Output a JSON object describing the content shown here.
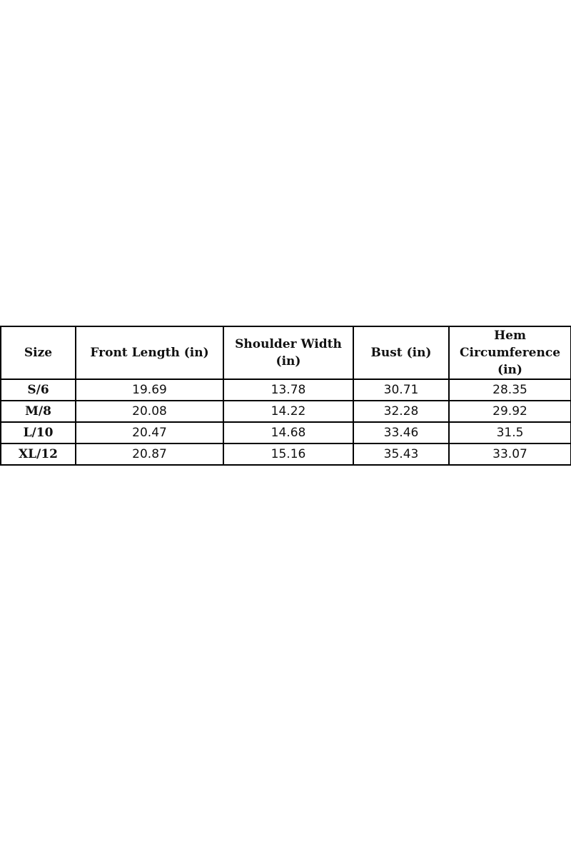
{
  "table": {
    "headers": [
      "Size",
      "Front Length (in)",
      "Shoulder Width (in)",
      "Bust (in)",
      "Hem Circumference (in)"
    ],
    "rows": [
      [
        "S/6",
        "19.69",
        "13.78",
        "30.71",
        "28.35"
      ],
      [
        "M/8",
        "20.08",
        "14.22",
        "32.28",
        "29.92"
      ],
      [
        "L/10",
        "20.47",
        "14.68",
        "33.46",
        "31.5"
      ],
      [
        "XL/12",
        "20.87",
        "15.16",
        "35.43",
        "33.07"
      ]
    ]
  }
}
